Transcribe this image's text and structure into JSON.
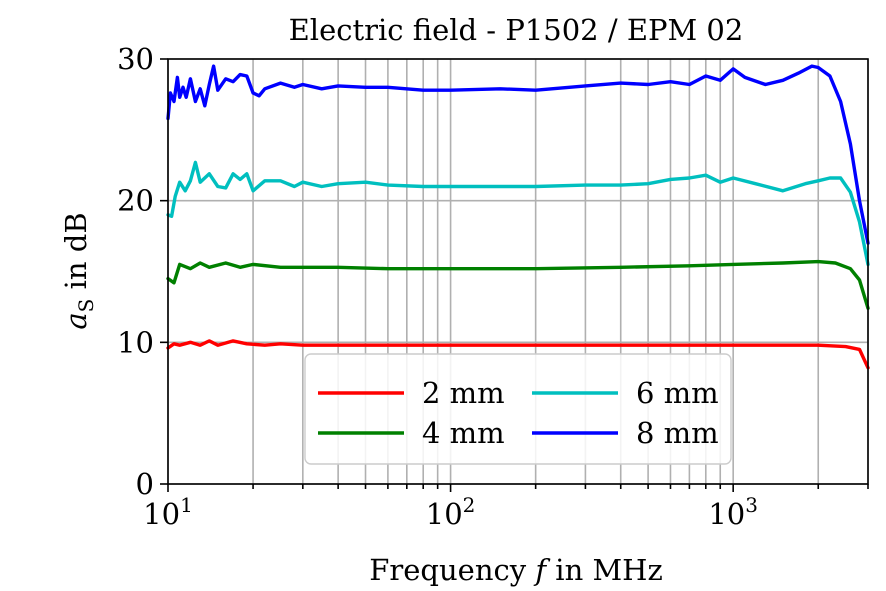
{
  "chart_data": {
    "type": "line",
    "title": "Electric field - P1502 / EPM 02",
    "xlabel": "Frequency f in MHz",
    "xlabel_parts": [
      "Frequency ",
      "f",
      " in MHz"
    ],
    "ylabel": "aS in dB",
    "ylabel_parts": [
      "a",
      "S",
      " in dB"
    ],
    "xscale": "log",
    "xlim": [
      10,
      3000
    ],
    "ylim": [
      0,
      30
    ],
    "yticks": [
      0,
      10,
      20,
      30
    ],
    "ytick_labels": [
      "0",
      "10",
      "20",
      "30"
    ],
    "xticks": [
      10,
      100,
      1000
    ],
    "xtick_labels": [
      {
        "base": "10",
        "exp": "1"
      },
      {
        "base": "10",
        "exp": "2"
      },
      {
        "base": "10",
        "exp": "3"
      }
    ],
    "grid": true,
    "legend": {
      "placement": "bottom-center",
      "columns": 2
    },
    "series": [
      {
        "name": "2 mm",
        "color": "#ff0000",
        "x": [
          10,
          10.5,
          11,
          12,
          13,
          14,
          15,
          17,
          19,
          22,
          25,
          30,
          40,
          60,
          100,
          200,
          400,
          700,
          1000,
          1500,
          2000,
          2500,
          2800,
          3000
        ],
        "y": [
          9.6,
          9.9,
          9.8,
          10.0,
          9.8,
          10.1,
          9.8,
          10.1,
          9.9,
          9.8,
          9.9,
          9.8,
          9.8,
          9.8,
          9.8,
          9.8,
          9.8,
          9.8,
          9.8,
          9.8,
          9.8,
          9.7,
          9.5,
          8.2
        ]
      },
      {
        "name": "4 mm",
        "color": "#008000",
        "x": [
          10,
          10.5,
          11,
          12,
          13,
          14,
          16,
          18,
          20,
          25,
          30,
          40,
          60,
          100,
          200,
          400,
          700,
          1000,
          1500,
          2000,
          2300,
          2600,
          2800,
          3000
        ],
        "y": [
          14.5,
          14.2,
          15.5,
          15.2,
          15.6,
          15.3,
          15.6,
          15.3,
          15.5,
          15.3,
          15.3,
          15.3,
          15.2,
          15.2,
          15.2,
          15.3,
          15.4,
          15.5,
          15.6,
          15.7,
          15.6,
          15.2,
          14.4,
          12.4
        ]
      },
      {
        "name": "6 mm",
        "color": "#00bfbf",
        "x": [
          10,
          10.3,
          10.6,
          11,
          11.5,
          12,
          12.5,
          13,
          14,
          15,
          16,
          17,
          18,
          19,
          20,
          22,
          25,
          28,
          30,
          35,
          40,
          50,
          60,
          80,
          100,
          150,
          200,
          300,
          400,
          500,
          600,
          700,
          800,
          900,
          1000,
          1200,
          1500,
          1800,
          2000,
          2200,
          2400,
          2600,
          2800,
          3000
        ],
        "y": [
          19.0,
          18.9,
          20.3,
          21.3,
          20.7,
          21.4,
          22.7,
          21.3,
          21.9,
          21.0,
          20.9,
          21.9,
          21.5,
          21.9,
          20.7,
          21.4,
          21.4,
          21.0,
          21.3,
          21.0,
          21.2,
          21.3,
          21.1,
          21.0,
          21.0,
          21.0,
          21.0,
          21.1,
          21.1,
          21.2,
          21.5,
          21.6,
          21.8,
          21.3,
          21.6,
          21.2,
          20.7,
          21.2,
          21.4,
          21.6,
          21.6,
          20.6,
          18.5,
          15.5
        ]
      },
      {
        "name": "8 mm",
        "color": "#0000ff",
        "x": [
          10,
          10.2,
          10.5,
          10.8,
          11,
          11.3,
          11.6,
          12,
          12.5,
          13,
          13.5,
          14,
          14.5,
          15,
          16,
          17,
          18,
          19,
          20,
          21,
          22,
          25,
          28,
          30,
          35,
          40,
          50,
          60,
          80,
          100,
          150,
          200,
          300,
          400,
          500,
          600,
          700,
          800,
          900,
          1000,
          1100,
          1300,
          1500,
          1700,
          1900,
          2000,
          2200,
          2400,
          2600,
          2800,
          3000
        ],
        "y": [
          25.8,
          27.6,
          27.0,
          28.7,
          27.3,
          28.0,
          27.3,
          28.6,
          27.0,
          27.9,
          26.7,
          28.2,
          29.5,
          27.8,
          28.6,
          28.4,
          28.9,
          28.8,
          27.6,
          27.4,
          27.9,
          28.3,
          28.0,
          28.2,
          27.9,
          28.1,
          28.0,
          28.0,
          27.8,
          27.8,
          27.9,
          27.8,
          28.1,
          28.3,
          28.2,
          28.4,
          28.2,
          28.8,
          28.5,
          29.3,
          28.7,
          28.2,
          28.5,
          29.0,
          29.5,
          29.4,
          28.8,
          27.0,
          24.0,
          20.0,
          17.0
        ]
      }
    ]
  }
}
